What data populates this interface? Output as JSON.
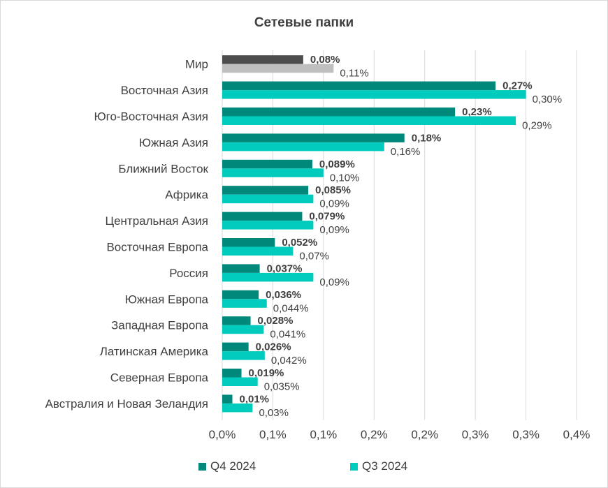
{
  "chart_data": {
    "type": "bar",
    "orientation": "horizontal",
    "title": "Сетевые папки",
    "xlabel": "",
    "ylabel": "",
    "xlim": [
      0,
      0.0035
    ],
    "x_tick_labels": [
      "0,0%",
      "0,1%",
      "0,1%",
      "0,2%",
      "0,2%",
      "0,3%",
      "0,3%",
      "0,4%"
    ],
    "grid": true,
    "legend_position": "bottom",
    "categories": [
      "Мир",
      "Восточная Азия",
      "Юго-Восточная Азия",
      "Южная Азия",
      "Ближний Восток",
      "Африка",
      "Центральная Азия",
      "Восточная Европа",
      "Россия",
      "Южная Европа",
      "Западная Европа",
      "Латинская Америка",
      "Северная Европа",
      "Австралия и Новая Зеландия"
    ],
    "series": [
      {
        "name": "Q4 2024",
        "color": "#00897b",
        "values": [
          0.0008,
          0.0027,
          0.0023,
          0.0018,
          0.00089,
          0.00085,
          0.00079,
          0.00052,
          0.00037,
          0.00036,
          0.00028,
          0.00026,
          0.00019,
          0.0001
        ],
        "labels": [
          "0,08%",
          "0,27%",
          "0,23%",
          "0,18%",
          "0,089%",
          "0,085%",
          "0,079%",
          "0,052%",
          "0,037%",
          "0,036%",
          "0,028%",
          "0,026%",
          "0,019%",
          "0,01%"
        ]
      },
      {
        "name": "Q3 2024",
        "color": "#00cbbd",
        "values": [
          0.0011,
          0.003,
          0.0029,
          0.0016,
          0.001,
          0.0009,
          0.0009,
          0.0007,
          0.0009,
          0.00044,
          0.00041,
          0.00042,
          0.00035,
          0.0003
        ],
        "labels": [
          "0,11%",
          "0,30%",
          "0,29%",
          "0,16%",
          "0,10%",
          "0,09%",
          "0,09%",
          "0,07%",
          "0,09%",
          "0,044%",
          "0,041%",
          "0,042%",
          "0,035%",
          "0,03%"
        ]
      }
    ],
    "highlight_first_category_colors": [
      "#4d4d4d",
      "#bfbfbf"
    ]
  }
}
